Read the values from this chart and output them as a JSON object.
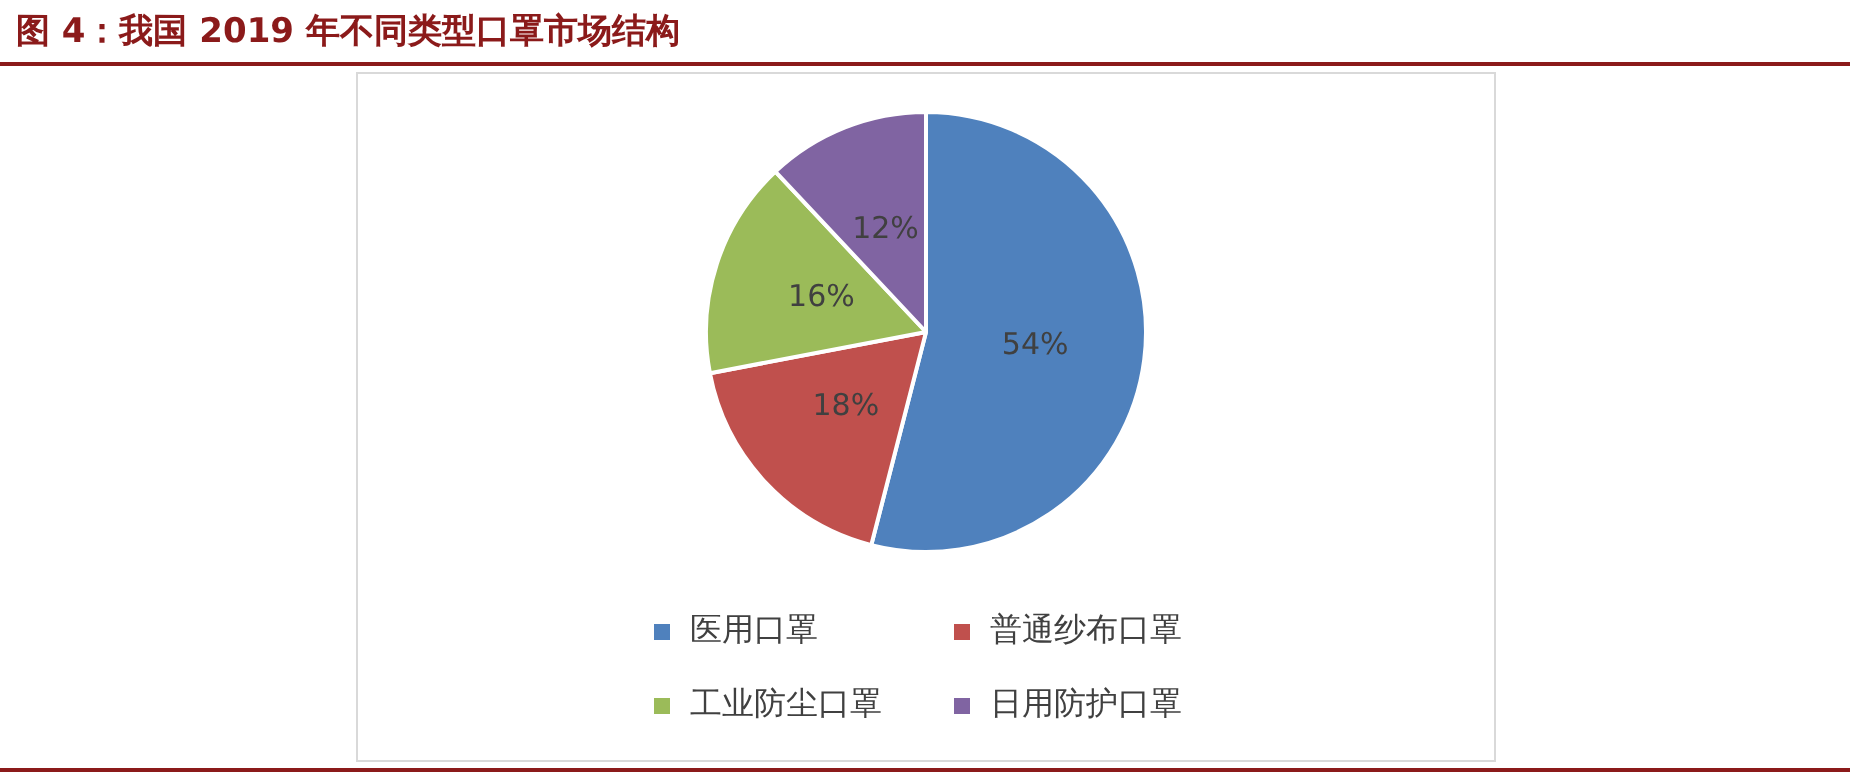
{
  "chart_data": {
    "type": "pie",
    "title": "图 4：我国 2019 年不同类型口罩市场结构",
    "categories": [
      "医用口罩",
      "普通纱布口罩",
      "工业防尘口罩",
      "日用防护口罩"
    ],
    "values": [
      54,
      18,
      16,
      12
    ],
    "colors": [
      "#4f81bd",
      "#c0504d",
      "#9bbb59",
      "#8064a2"
    ],
    "value_labels": [
      "54%",
      "18%",
      "16%",
      "12%"
    ],
    "legend": "bottom"
  }
}
